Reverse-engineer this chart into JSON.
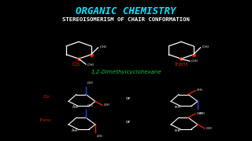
{
  "title": "ORGANIC CHEMISTRY",
  "subtitle": "STEREOISOMERISM OF CHAIR CONFORMATION",
  "title_color": "#00e5ff",
  "subtitle_color": "#ffffff",
  "background_color": "#000000",
  "compound_label": "1,2-Dimethylcyclohexane",
  "compound_label_color": "#00cc44",
  "cis_label": "Cis",
  "trans_label": "trans",
  "label_color": "#cc2200",
  "or_color": "#ffffff",
  "chair_line_color": "#ffffff",
  "ch3_color": "#ffffff",
  "red_bond_color": "#dd2200",
  "blue_bond_color": "#2244dd"
}
